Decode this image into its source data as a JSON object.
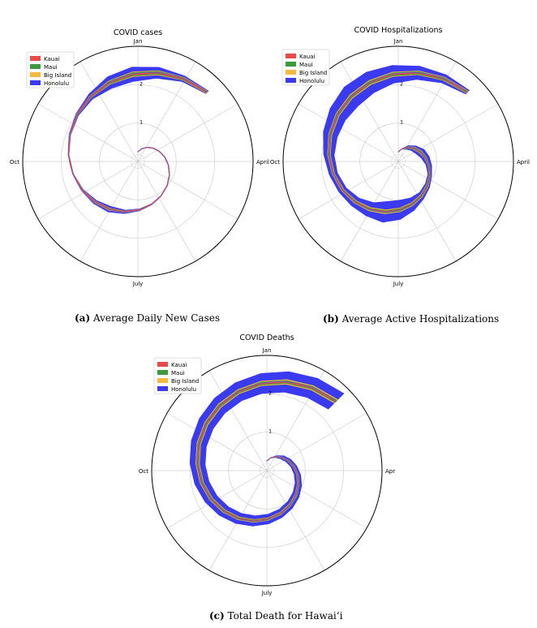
{
  "chart_data": [
    {
      "type": "polar-spiral-stream",
      "title": "COVID cases",
      "angle_ticks": [
        "Jan",
        "April",
        "July",
        "Oct"
      ],
      "radial_ticks": [
        "1",
        "2"
      ],
      "rmax": 3.0,
      "legend": [
        {
          "name": "Kauai",
          "color": "#e84a4a"
        },
        {
          "name": "Maui",
          "color": "#3b9a3b"
        },
        {
          "name": "Big Island",
          "color": "#f5b942"
        },
        {
          "name": "Honolulu",
          "color": "#3a3af0"
        }
      ],
      "series": [
        {
          "name": "Kauai",
          "color": "#e84a4a",
          "widths": [
            0,
            0,
            0,
            0,
            0,
            0,
            0,
            0,
            0,
            0,
            0,
            0.01,
            0.01,
            0.01,
            0.012,
            0.01,
            0,
            0,
            0,
            0.005,
            0.01,
            0.012,
            0.02,
            0.02,
            0.015,
            0.01
          ]
        },
        {
          "name": "Maui",
          "color": "#3b9a3b",
          "widths": [
            0,
            0,
            0,
            0,
            0,
            0,
            0,
            0,
            0,
            0,
            0.002,
            0.005,
            0.01,
            0.015,
            0.01,
            0.005,
            0,
            0,
            0.005,
            0.01,
            0.02,
            0.04,
            0.05,
            0.045,
            0.03,
            0.02
          ]
        },
        {
          "name": "Big Island",
          "color": "#f5b942",
          "widths": [
            0,
            0,
            0,
            0,
            0,
            0,
            0,
            0,
            0,
            0,
            0.002,
            0.005,
            0.01,
            0.02,
            0.015,
            0.005,
            0,
            0,
            0.005,
            0.01,
            0.015,
            0.03,
            0.04,
            0.035,
            0.02,
            0.015
          ]
        },
        {
          "name": "Honolulu",
          "color": "#3a3af0",
          "widths": [
            0,
            0,
            0,
            0,
            0,
            0,
            0,
            0,
            0,
            0,
            0.01,
            0.02,
            0.05,
            0.1,
            0.06,
            0.02,
            0.01,
            0.01,
            0.02,
            0.04,
            0.1,
            0.22,
            0.25,
            0.18,
            0.08,
            0.04
          ]
        }
      ]
    },
    {
      "type": "polar-spiral-stream",
      "title": "COVID Hospitalizations",
      "angle_ticks": [
        "Jan",
        "April",
        "July",
        "Oct"
      ],
      "radial_ticks": [
        "1",
        "2"
      ],
      "rmax": 3.0,
      "legend": [
        {
          "name": "Kauai",
          "color": "#e84a4a"
        },
        {
          "name": "Maui",
          "color": "#3b9a3b"
        },
        {
          "name": "Big Island",
          "color": "#f5b942"
        },
        {
          "name": "Honolulu",
          "color": "#3a3af0"
        }
      ],
      "series": [
        {
          "name": "Kauai",
          "color": "#e84a4a",
          "widths": [
            0,
            0,
            0.005,
            0.01,
            0.01,
            0.005,
            0.003,
            0.003,
            0.005,
            0.005,
            0.005,
            0.006,
            0.006,
            0.006,
            0.005,
            0.005,
            0.005,
            0.006,
            0.008,
            0.01,
            0.01,
            0.01,
            0.01,
            0.008,
            0.008,
            0.006
          ]
        },
        {
          "name": "Maui",
          "color": "#3b9a3b",
          "widths": [
            0,
            0,
            0.02,
            0.03,
            0.03,
            0.025,
            0.02,
            0.02,
            0.025,
            0.03,
            0.035,
            0.04,
            0.04,
            0.035,
            0.03,
            0.025,
            0.025,
            0.03,
            0.035,
            0.04,
            0.045,
            0.05,
            0.05,
            0.045,
            0.04,
            0.03
          ]
        },
        {
          "name": "Big Island",
          "color": "#f5b942",
          "widths": [
            0,
            0,
            0.01,
            0.02,
            0.03,
            0.02,
            0.01,
            0.01,
            0.02,
            0.025,
            0.03,
            0.04,
            0.05,
            0.04,
            0.03,
            0.025,
            0.02,
            0.025,
            0.03,
            0.035,
            0.04,
            0.045,
            0.04,
            0.035,
            0.03,
            0.02
          ]
        },
        {
          "name": "Honolulu",
          "color": "#3a3af0",
          "widths": [
            0,
            0,
            0.06,
            0.1,
            0.16,
            0.15,
            0.1,
            0.06,
            0.08,
            0.12,
            0.25,
            0.4,
            0.45,
            0.3,
            0.2,
            0.15,
            0.15,
            0.2,
            0.3,
            0.4,
            0.5,
            0.45,
            0.35,
            0.25,
            0.15,
            0.06
          ]
        }
      ]
    },
    {
      "type": "polar-spiral-stream",
      "title": "COVID Deaths",
      "angle_ticks": [
        "Jan",
        "Apr",
        "July",
        "Oct"
      ],
      "radial_ticks": [
        "1",
        "2"
      ],
      "rmax": 3.0,
      "legend": [
        {
          "name": "Kauai",
          "color": "#e84a4a"
        },
        {
          "name": "Maui",
          "color": "#3b9a3b"
        },
        {
          "name": "Big Island",
          "color": "#f5b942"
        },
        {
          "name": "Honolulu",
          "color": "#3a3af0"
        }
      ],
      "series": [
        {
          "name": "Kauai",
          "color": "#e84a4a",
          "widths": [
            0,
            0,
            0,
            0.002,
            0.003,
            0.004,
            0.005,
            0.005,
            0.006,
            0.006,
            0.006,
            0.007,
            0.007,
            0.008,
            0.008,
            0.008,
            0.009,
            0.009,
            0.01,
            0.01,
            0.01,
            0.01,
            0.01,
            0.01,
            0.01,
            0.01
          ]
        },
        {
          "name": "Maui",
          "color": "#3b9a3b",
          "widths": [
            0,
            0,
            0.005,
            0.01,
            0.012,
            0.014,
            0.016,
            0.018,
            0.02,
            0.022,
            0.024,
            0.026,
            0.028,
            0.03,
            0.032,
            0.034,
            0.036,
            0.038,
            0.04,
            0.042,
            0.044,
            0.046,
            0.048,
            0.05,
            0.05,
            0.05
          ]
        },
        {
          "name": "Big Island",
          "color": "#f5b942",
          "widths": [
            0,
            0,
            0.005,
            0.008,
            0.01,
            0.012,
            0.014,
            0.016,
            0.018,
            0.02,
            0.022,
            0.024,
            0.026,
            0.028,
            0.03,
            0.032,
            0.034,
            0.036,
            0.038,
            0.04,
            0.042,
            0.044,
            0.046,
            0.048,
            0.05,
            0.05
          ]
        },
        {
          "name": "Honolulu",
          "color": "#3a3af0",
          "widths": [
            0,
            0,
            0.03,
            0.08,
            0.1,
            0.11,
            0.12,
            0.13,
            0.14,
            0.15,
            0.16,
            0.18,
            0.2,
            0.22,
            0.24,
            0.26,
            0.28,
            0.3,
            0.32,
            0.34,
            0.36,
            0.38,
            0.4,
            0.42,
            0.44,
            0.45
          ]
        }
      ]
    }
  ],
  "captions": [
    {
      "label": "(a)",
      "text": "Average Daily New Cases"
    },
    {
      "label": "(b)",
      "text": "Average Active Hospitalizations"
    },
    {
      "label": "(c)",
      "text": "Total Death for Hawai‘i"
    }
  ]
}
